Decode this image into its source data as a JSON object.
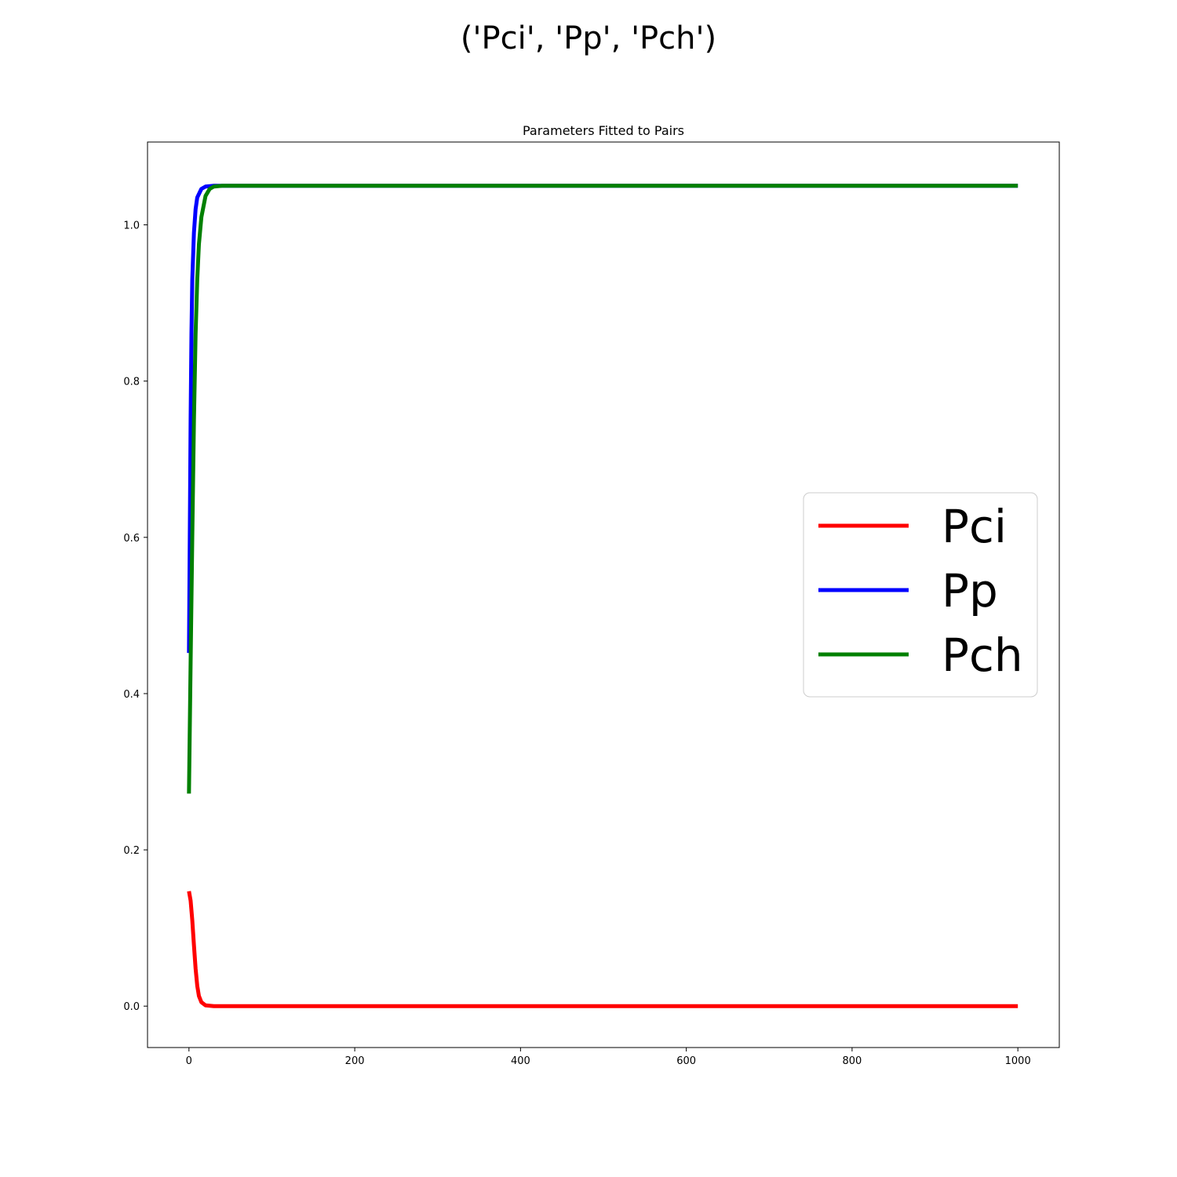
{
  "figure_title": "('Pci', 'Pp', 'Pch')",
  "chart_data": {
    "type": "line",
    "title": "Parameters Fitted to Pairs",
    "xlabel": "",
    "ylabel": "",
    "xlim": [
      -50,
      1050
    ],
    "ylim": [
      -0.053,
      1.106
    ],
    "xticks": [
      0,
      200,
      400,
      600,
      800,
      1000
    ],
    "yticks": [
      0.0,
      0.2,
      0.4,
      0.6,
      0.8,
      1.0
    ],
    "xtick_labels": [
      "0",
      "200",
      "400",
      "600",
      "800",
      "1000"
    ],
    "ytick_labels": [
      "0.0",
      "0.2",
      "0.4",
      "0.6",
      "0.8",
      "1.0"
    ],
    "grid": false,
    "legend_position": "center-right",
    "series": [
      {
        "name": "Pci",
        "color": "#ff0000",
        "points": [
          [
            0,
            0.147
          ],
          [
            2,
            0.135
          ],
          [
            4,
            0.11
          ],
          [
            6,
            0.078
          ],
          [
            8,
            0.048
          ],
          [
            10,
            0.026
          ],
          [
            12,
            0.013
          ],
          [
            15,
            0.005
          ],
          [
            20,
            0.001
          ],
          [
            30,
            0.0
          ],
          [
            1000,
            0.0
          ]
        ]
      },
      {
        "name": "Pp",
        "color": "#0000ff",
        "points": [
          [
            0,
            0.452
          ],
          [
            1,
            0.6
          ],
          [
            2,
            0.75
          ],
          [
            3,
            0.86
          ],
          [
            4,
            0.93
          ],
          [
            6,
            0.99
          ],
          [
            8,
            1.02
          ],
          [
            10,
            1.035
          ],
          [
            15,
            1.046
          ],
          [
            20,
            1.049
          ],
          [
            30,
            1.05
          ],
          [
            1000,
            1.05
          ]
        ]
      },
      {
        "name": "Pch",
        "color": "#008000",
        "points": [
          [
            0,
            0.272
          ],
          [
            2,
            0.44
          ],
          [
            4,
            0.6
          ],
          [
            6,
            0.75
          ],
          [
            8,
            0.86
          ],
          [
            10,
            0.93
          ],
          [
            12,
            0.975
          ],
          [
            15,
            1.01
          ],
          [
            20,
            1.037
          ],
          [
            25,
            1.046
          ],
          [
            30,
            1.049
          ],
          [
            40,
            1.05
          ],
          [
            1000,
            1.05
          ]
        ]
      }
    ]
  }
}
